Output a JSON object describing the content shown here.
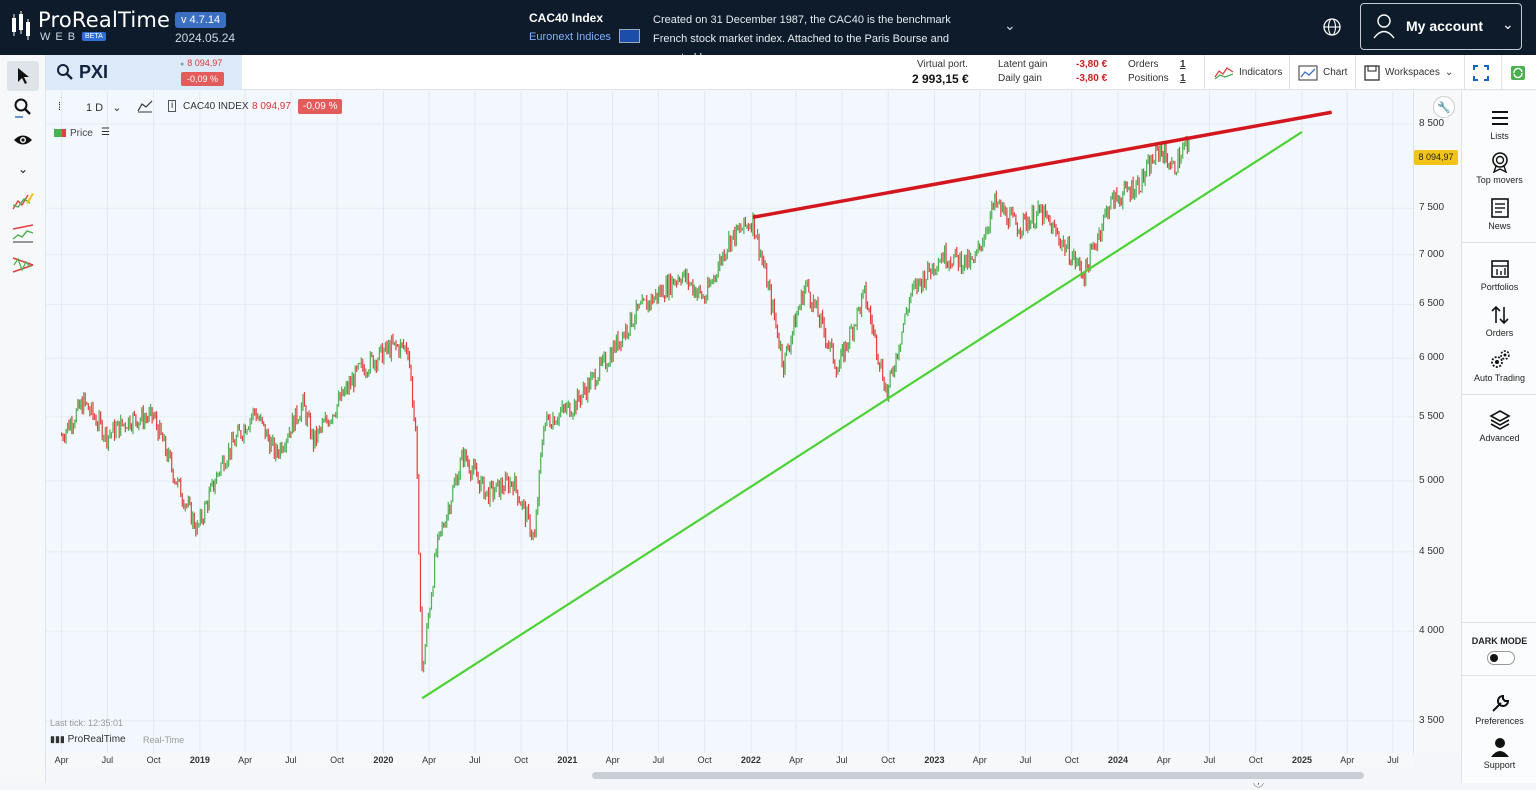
{
  "header": {
    "brand": "ProRealTime",
    "brand_sub": "WEB",
    "beta": "BETA",
    "version": "v 4.7.14",
    "date": "2024.05.24",
    "instrument_name": "CAC40 Index",
    "instrument_market": "Euronext Indices",
    "instrument_description": "Created on 31 December 1987, the CAC40 is the benchmark French stock market index. Attached to the Paris Bourse and operated by...",
    "account_label": "My account"
  },
  "toolbar": {
    "ticker": "PXI",
    "last_price": "8 094,97",
    "change": "-0,09 %",
    "virtual_port_label": "Virtual port.",
    "virtual_port_value": "2 993,15 €",
    "latent_gain_label": "Latent gain",
    "latent_gain_value": "-3,80 €",
    "daily_gain_label": "Daily gain",
    "daily_gain_value": "-3,80 €",
    "orders_label": "Orders",
    "orders_value": "1",
    "positions_label": "Positions",
    "positions_value": "1",
    "indicators_label": "Indicators",
    "chart_label": "Chart",
    "workspaces_label": "Workspaces"
  },
  "chart_header": {
    "timeframe": "1 D",
    "index_name": "CAC40 INDEX",
    "index_price": "8 094,97",
    "index_change": "-0,09 %",
    "legend_price": "Price"
  },
  "chart_footer": {
    "last_tick": "Last tick: 12:35:01",
    "brand": "ProRealTime",
    "realtime": "Real-Time"
  },
  "right_panel": {
    "lists": "Lists",
    "top_movers": "Top movers",
    "news": "News",
    "portfolios": "Portfolios",
    "orders": "Orders",
    "auto_trading": "Auto Trading",
    "advanced": "Advanced",
    "dark_mode": "DARK MODE",
    "preferences": "Preferences",
    "support": "Support"
  },
  "colors": {
    "resistance_line": "#d4161e",
    "support_line": "#4cd137",
    "candle_up": "#4caf50",
    "candle_down": "#e04040",
    "price_tag": "#f2c418"
  },
  "chart_data": {
    "type": "line",
    "title": "",
    "y_ticks": [
      "8 500",
      "7 500",
      "7 000",
      "6 500",
      "6 000",
      "5 500",
      "5 000",
      "4 500",
      "4 000",
      "3 500"
    ],
    "x_ticks": [
      "Apr",
      "Jul",
      "Oct",
      "2019",
      "Apr",
      "Jul",
      "Oct",
      "2020",
      "Apr",
      "Jul",
      "Oct",
      "2021",
      "Apr",
      "Jul",
      "Oct",
      "2022",
      "Apr",
      "Jul",
      "Oct",
      "2023",
      "Apr",
      "Jul",
      "Oct",
      "2024",
      "Apr",
      "Jul",
      "Oct",
      "2025",
      "Apr",
      "Jul"
    ],
    "current_price_label": "8 094,97",
    "series": [
      {
        "values": [
          [
            "2018-04-01",
            5350
          ],
          [
            "2018-05-15",
            5620
          ],
          [
            "2018-06-30",
            5350
          ],
          [
            "2018-08-15",
            5480
          ],
          [
            "2018-10-01",
            5500
          ],
          [
            "2018-11-15",
            5000
          ],
          [
            "2018-12-27",
            4650
          ],
          [
            "2019-02-15",
            5150
          ],
          [
            "2019-04-20",
            5550
          ],
          [
            "2019-06-01",
            5200
          ],
          [
            "2019-07-25",
            5600
          ],
          [
            "2019-08-15",
            5300
          ],
          [
            "2019-10-01",
            5600
          ],
          [
            "2019-11-15",
            5900
          ],
          [
            "2020-01-17",
            6100
          ],
          [
            "2020-02-19",
            6100
          ],
          [
            "2020-03-05",
            5350
          ],
          [
            "2020-03-18",
            3750
          ],
          [
            "2020-04-15",
            4500
          ],
          [
            "2020-06-08",
            5200
          ],
          [
            "2020-07-25",
            4900
          ],
          [
            "2020-09-15",
            5000
          ],
          [
            "2020-10-28",
            4580
          ],
          [
            "2020-11-15",
            5450
          ],
          [
            "2021-01-15",
            5600
          ],
          [
            "2021-03-15",
            5950
          ],
          [
            "2021-05-15",
            6400
          ],
          [
            "2021-08-15",
            6800
          ],
          [
            "2021-10-01",
            6550
          ],
          [
            "2021-11-18",
            7150
          ],
          [
            "2022-01-05",
            7370
          ],
          [
            "2022-03-07",
            5950
          ],
          [
            "2022-04-20",
            6700
          ],
          [
            "2022-06-23",
            5900
          ],
          [
            "2022-08-15",
            6600
          ],
          [
            "2022-09-29",
            5680
          ],
          [
            "2022-11-15",
            6600
          ],
          [
            "2023-01-15",
            7000
          ],
          [
            "2023-03-20",
            6900
          ],
          [
            "2023-05-01",
            7550
          ],
          [
            "2023-06-15",
            7300
          ],
          [
            "2023-08-01",
            7450
          ],
          [
            "2023-10-26",
            6800
          ],
          [
            "2023-12-15",
            7550
          ],
          [
            "2024-02-15",
            7800
          ],
          [
            "2024-03-25",
            8200
          ],
          [
            "2024-04-20",
            7950
          ],
          [
            "2024-05-15",
            8240
          ],
          [
            "2024-05-24",
            8095
          ]
        ]
      }
    ],
    "trendlines": [
      {
        "kind": "resistance",
        "from": [
          "2022-01-05",
          7400
        ],
        "to": [
          "2025-03-01",
          8650
        ]
      },
      {
        "kind": "support",
        "from": [
          "2020-03-18",
          3620
        ],
        "to": [
          "2025-01-01",
          8400
        ]
      }
    ]
  }
}
